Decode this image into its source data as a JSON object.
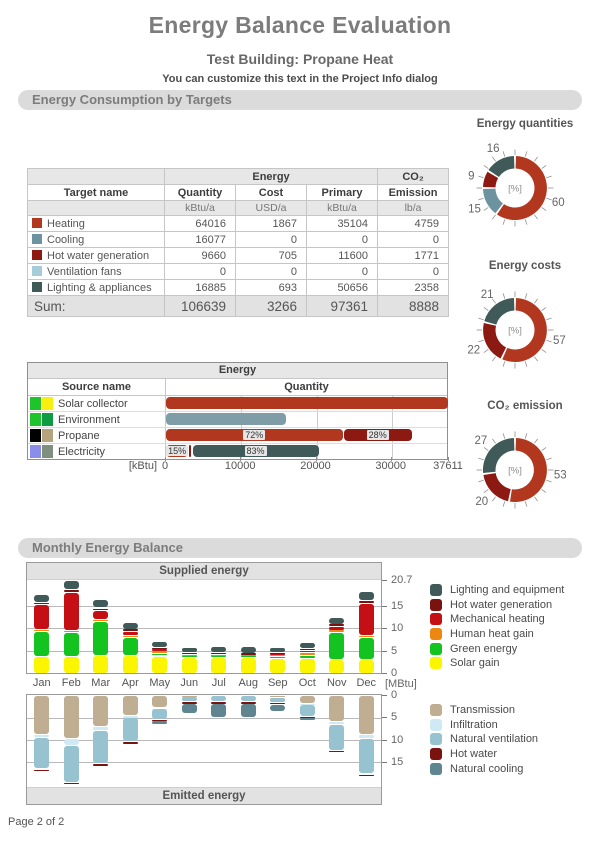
{
  "page": {
    "title": "Energy Balance Evaluation",
    "subtitle": "Test Building: Propane Heat",
    "note": "You can customize this text in the Project Info dialog",
    "footer": "Page 2 of 2"
  },
  "sections": {
    "consumption": "Energy Consumption by Targets",
    "monthly": "Monthly Energy Balance"
  },
  "targets_table": {
    "group_headers": {
      "energy": "Energy",
      "co2": "CO₂"
    },
    "columns": [
      "Target name",
      "Quantity",
      "Cost",
      "Primary",
      "Emission"
    ],
    "units": [
      "",
      "kBtu/a",
      "USD/a",
      "kBtu/a",
      "lb/a"
    ],
    "rows": [
      {
        "name": "Heating",
        "color": "#b2371f",
        "quantity": "64016",
        "cost": "1867",
        "primary": "35104",
        "emission": "4759"
      },
      {
        "name": "Cooling",
        "color": "#6d93a0",
        "quantity": "16077",
        "cost": "0",
        "primary": "0",
        "emission": "0"
      },
      {
        "name": "Hot water generation",
        "color": "#8c1a12",
        "quantity": "9660",
        "cost": "705",
        "primary": "11600",
        "emission": "1771"
      },
      {
        "name": "Ventilation fans",
        "color": "#a5ccd7",
        "quantity": "0",
        "cost": "0",
        "primary": "0",
        "emission": "0"
      },
      {
        "name": "Lighting & appliances",
        "color": "#3f5a58",
        "quantity": "16885",
        "cost": "693",
        "primary": "50656",
        "emission": "2358"
      }
    ],
    "sum": {
      "label": "Sum:",
      "quantity": "106639",
      "cost": "3266",
      "primary": "97361",
      "emission": "8888"
    }
  },
  "chart_data": [
    {
      "id": "donut_quantities",
      "type": "pie",
      "title": "Energy quantities",
      "center_label": "[%]",
      "unit": "%",
      "segments": [
        {
          "value": 60,
          "color": "#b2371f"
        },
        {
          "value": 15,
          "color": "#6d93a0"
        },
        {
          "value": 9,
          "color": "#8c1a12"
        },
        {
          "value": 16,
          "color": "#3f5a58"
        }
      ]
    },
    {
      "id": "donut_costs",
      "type": "pie",
      "title": "Energy costs",
      "center_label": "[%]",
      "unit": "%",
      "segments": [
        {
          "value": 57,
          "color": "#b2371f"
        },
        {
          "value": 22,
          "color": "#8c1a12"
        },
        {
          "value": 21,
          "color": "#3f5a58"
        }
      ]
    },
    {
      "id": "donut_co2",
      "type": "pie",
      "title": "CO₂ emission",
      "center_label": "[%]",
      "unit": "%",
      "segments": [
        {
          "value": 53,
          "color": "#b2371f"
        },
        {
          "value": 20,
          "color": "#8c1a12"
        },
        {
          "value": 27,
          "color": "#3f5a58"
        }
      ]
    },
    {
      "id": "source_bars",
      "type": "bar",
      "table_header": "Energy",
      "columns": [
        "Source name",
        "Quantity"
      ],
      "axis_label": "[kBtu]",
      "axis_max": 37611,
      "axis_ticks": [
        "0",
        "10000",
        "20000",
        "30000",
        "37611"
      ],
      "rows": [
        {
          "name": "Solar collector",
          "swatches": [
            "#1fc32b",
            "#f9ef0f"
          ],
          "segments": [
            {
              "value": 37611,
              "color": "#b2371f"
            }
          ]
        },
        {
          "name": "Environment",
          "swatches": [
            "#1fc32b",
            "#0d9c43"
          ],
          "segments": [
            {
              "value": 16077,
              "color": "#7e9da6"
            }
          ]
        },
        {
          "name": "Propane",
          "swatches": [
            "#000000",
            "#b4a37d"
          ],
          "segments": [
            {
              "value": 23600,
              "color": "#b2371f",
              "label": "72%"
            },
            {
              "value": 9200,
              "color": "#8c1a12",
              "label": "28%"
            }
          ]
        },
        {
          "name": "Electricity",
          "swatches": [
            "#8b8dea",
            "#7e8f80"
          ],
          "segments": [
            {
              "value": 3100,
              "color": "#f5e9e4",
              "border": "#b2371f",
              "label": "15%"
            },
            {
              "value": 420,
              "color": "#8c1a12"
            },
            {
              "value": 16885,
              "color": "#3f5a58",
              "label": "83%"
            }
          ]
        }
      ]
    },
    {
      "id": "monthly_supplied",
      "type": "bar",
      "stacked": true,
      "direction": "up",
      "title": "Supplied energy",
      "ymax": 20.7,
      "yticks": [
        20.7,
        15,
        10,
        5,
        0
      ],
      "categories": [
        "Jan",
        "Feb",
        "Mar",
        "Apr",
        "May",
        "Jun",
        "Jul",
        "Aug",
        "Sep",
        "Oct",
        "Nov",
        "Dec"
      ],
      "series": [
        {
          "name": "Solar gain",
          "color": "#fbf500",
          "values": [
            3.7,
            3.7,
            3.9,
            3.9,
            3.8,
            3.4,
            3.5,
            3.4,
            3.2,
            3.3,
            3.0,
            3.0
          ]
        },
        {
          "name": "Green energy",
          "color": "#13c31f",
          "values": [
            5.5,
            5.3,
            7.6,
            4.0,
            0.6,
            0.3,
            0.2,
            0.2,
            0.4,
            0.7,
            6.1,
            4.9
          ]
        },
        {
          "name": "Human heat gain",
          "color": "#ee8712",
          "values": [
            0.4,
            0.4,
            0.4,
            0.5,
            0.5,
            0.4,
            0.4,
            0.4,
            0.4,
            0.5,
            0.3,
            0.4
          ]
        },
        {
          "name": "Mechanical heating",
          "color": "#c41014",
          "values": [
            5.6,
            8.6,
            2.0,
            0.9,
            0.3,
            0.0,
            0.0,
            0.0,
            0.1,
            0.5,
            1.0,
            7.3
          ]
        },
        {
          "name": "Hot water generation",
          "color": "#7a130f",
          "values": [
            0.6,
            0.6,
            0.6,
            0.5,
            0.4,
            0.4,
            0.4,
            0.4,
            0.4,
            0.4,
            0.4,
            0.6
          ]
        },
        {
          "name": "Lighting and equipment",
          "color": "#3f5a58",
          "values": [
            1.7,
            2.0,
            1.8,
            1.5,
            1.4,
            1.3,
            1.4,
            1.5,
            1.3,
            1.5,
            1.6,
            1.9
          ]
        }
      ]
    },
    {
      "id": "monthly_emitted",
      "type": "bar",
      "stacked": true,
      "direction": "down",
      "title": "Emitted energy",
      "ymax": 20.7,
      "yticks": [
        0,
        5,
        10,
        15
      ],
      "categories": [
        "Jan",
        "Feb",
        "Mar",
        "Apr",
        "May",
        "Jun",
        "Jul",
        "Aug",
        "Sep",
        "Oct",
        "Nov",
        "Dec"
      ],
      "series": [
        {
          "name": "Transmission",
          "color": "#c0ae93",
          "values": [
            8.7,
            9.7,
            7.0,
            4.6,
            2.9,
            0.3,
            0,
            0,
            0.5,
            1.8,
            6.0,
            8.7
          ]
        },
        {
          "name": "Infiltration",
          "color": "#cfeaf4",
          "values": [
            0.8,
            1.5,
            1.0,
            0.5,
            0.2,
            0,
            0,
            0,
            0,
            0.2,
            0.6,
            1.0
          ]
        },
        {
          "name": "Natural ventilation",
          "color": "#97c2cf",
          "values": [
            7.0,
            8.3,
            7.3,
            5.3,
            2.3,
            1.2,
            1.5,
            1.5,
            1.2,
            2.8,
            5.7,
            7.9
          ]
        },
        {
          "name": "Hot water",
          "color": "#7a130f",
          "values": [
            0.5,
            0.5,
            0.5,
            0.5,
            0.3,
            0.4,
            0.4,
            0.35,
            0.35,
            0.3,
            0.4,
            0.5
          ]
        },
        {
          "name": "Natural cooling",
          "color": "#5f8591",
          "values": [
            0,
            0,
            0,
            0,
            0.8,
            2.2,
            3.2,
            3.3,
            1.7,
            0.6,
            0,
            0
          ]
        }
      ]
    }
  ],
  "monthly": {
    "unit_label": "[MBtu]"
  }
}
